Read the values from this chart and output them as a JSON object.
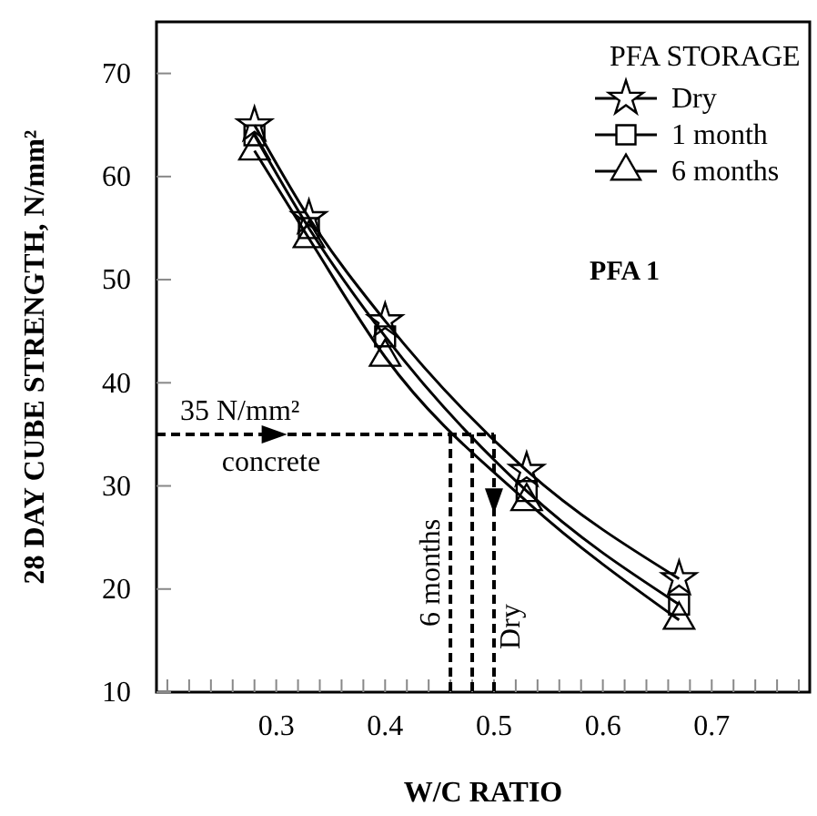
{
  "chart_data": {
    "type": "line",
    "xlabel": "W/C RATIO",
    "ylabel": "28 DAY CUBE STRENGTH, N/mm²",
    "legend_title": "PFA STORAGE",
    "legend": "top right",
    "grid": false,
    "x": [
      0.28,
      0.33,
      0.4,
      0.53,
      0.67
    ],
    "series": [
      {
        "name": "Dry",
        "color": "#000000",
        "marker": "star",
        "values": [
          65,
          56,
          46,
          31.5,
          21
        ]
      },
      {
        "name": "1 month",
        "color": "#000000",
        "marker": "square",
        "values": [
          64,
          55,
          44.5,
          29.5,
          18.5
        ]
      },
      {
        "name": "6 months",
        "color": "#000000",
        "marker": "triangle",
        "values": [
          62.5,
          54,
          42.5,
          28.5,
          17
        ]
      }
    ],
    "xlim": [
      0.19,
      0.79
    ],
    "ylim": [
      10,
      75
    ],
    "xticks": [
      {
        "value": 0.2,
        "label": null
      },
      {
        "value": 0.22,
        "label": null
      },
      {
        "value": 0.24,
        "label": null
      },
      {
        "value": 0.26,
        "label": null
      },
      {
        "value": 0.28,
        "label": null
      },
      {
        "value": 0.3,
        "label": "0.3"
      },
      {
        "value": 0.32,
        "label": null
      },
      {
        "value": 0.34,
        "label": null
      },
      {
        "value": 0.36,
        "label": null
      },
      {
        "value": 0.38,
        "label": null
      },
      {
        "value": 0.4,
        "label": "0.4"
      },
      {
        "value": 0.42,
        "label": null
      },
      {
        "value": 0.44,
        "label": null
      },
      {
        "value": 0.46,
        "label": null
      },
      {
        "value": 0.48,
        "label": null
      },
      {
        "value": 0.5,
        "label": "0.5"
      },
      {
        "value": 0.52,
        "label": null
      },
      {
        "value": 0.54,
        "label": null
      },
      {
        "value": 0.56,
        "label": null
      },
      {
        "value": 0.58,
        "label": null
      },
      {
        "value": 0.6,
        "label": "0.6"
      },
      {
        "value": 0.62,
        "label": null
      },
      {
        "value": 0.64,
        "label": null
      },
      {
        "value": 0.66,
        "label": null
      },
      {
        "value": 0.68,
        "label": null
      },
      {
        "value": 0.7,
        "label": "0.7"
      },
      {
        "value": 0.72,
        "label": null
      },
      {
        "value": 0.74,
        "label": null
      },
      {
        "value": 0.76,
        "label": null
      },
      {
        "value": 0.78,
        "label": null
      }
    ],
    "yticks": [
      10,
      20,
      30,
      40,
      50,
      60,
      70
    ],
    "ref_lines": [
      {
        "axis": "y",
        "value": 35,
        "label": "35 N/mm²",
        "line_style": "dashed",
        "color": "#000000"
      },
      {
        "axis": "x",
        "value": 0.46,
        "label": "6 months",
        "line_style": "dashed",
        "color": "#000000"
      },
      {
        "axis": "x",
        "value": 0.48,
        "label": null,
        "line_style": "dashed",
        "color": "#000000"
      },
      {
        "axis": "x",
        "value": 0.5,
        "label": "Dry",
        "line_style": "dashed",
        "color": "#000000"
      }
    ],
    "annotations": [
      {
        "text": "concrete",
        "x": 0.25,
        "y": 35
      },
      "PFA 1"
    ]
  }
}
